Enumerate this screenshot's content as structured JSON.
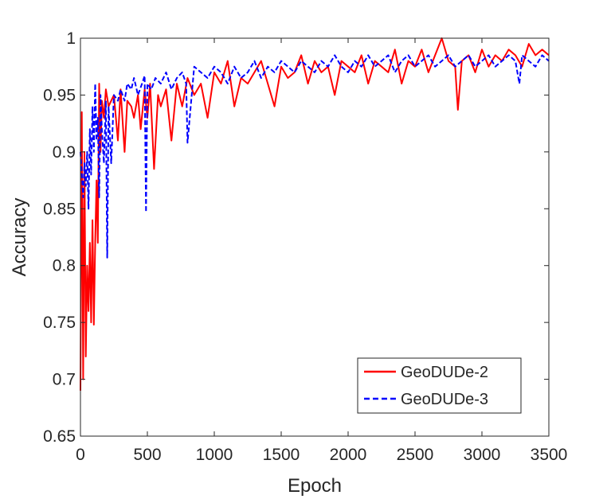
{
  "chart_data": {
    "type": "line",
    "xlabel": "Epoch",
    "ylabel": "Accuracy",
    "xlim": [
      0,
      3500
    ],
    "ylim": [
      0.65,
      1
    ],
    "x_ticks": [
      0,
      500,
      1000,
      1500,
      2000,
      2500,
      3000,
      3500
    ],
    "y_ticks": [
      0.65,
      0.7,
      0.75,
      0.8,
      0.85,
      0.9,
      0.95,
      1
    ],
    "x_tick_labels": [
      "0",
      "500",
      "1000",
      "1500",
      "2000",
      "2500",
      "3000",
      "3500"
    ],
    "y_tick_labels": [
      "0.65",
      "0.7",
      "0.75",
      "0.8",
      "0.85",
      "0.9",
      "0.95",
      "1"
    ],
    "grid": false,
    "legend_position": "bottom-right",
    "series": [
      {
        "name": "GeoDUDe-2",
        "color": "#ff0000",
        "style": "solid",
        "x": [
          0,
          10,
          20,
          30,
          40,
          50,
          60,
          70,
          80,
          90,
          100,
          110,
          120,
          130,
          140,
          150,
          160,
          175,
          190,
          210,
          230,
          250,
          280,
          300,
          330,
          350,
          380,
          400,
          430,
          450,
          480,
          500,
          520,
          550,
          580,
          600,
          640,
          680,
          720,
          760,
          800,
          850,
          900,
          950,
          1000,
          1050,
          1100,
          1150,
          1200,
          1250,
          1300,
          1350,
          1400,
          1450,
          1500,
          1550,
          1600,
          1650,
          1700,
          1750,
          1800,
          1850,
          1900,
          1950,
          2000,
          2050,
          2100,
          2150,
          2200,
          2250,
          2300,
          2350,
          2400,
          2450,
          2500,
          2550,
          2600,
          2650,
          2700,
          2750,
          2800,
          2820,
          2850,
          2900,
          2950,
          3000,
          3050,
          3100,
          3150,
          3200,
          3250,
          3300,
          3350,
          3400,
          3450,
          3500
        ],
        "values": [
          0.69,
          0.935,
          0.7,
          0.9,
          0.72,
          0.8,
          0.76,
          0.82,
          0.75,
          0.84,
          0.748,
          0.82,
          0.875,
          0.82,
          0.96,
          0.9,
          0.945,
          0.93,
          0.955,
          0.94,
          0.945,
          0.95,
          0.91,
          0.955,
          0.9,
          0.945,
          0.94,
          0.93,
          0.95,
          0.92,
          0.955,
          0.93,
          0.96,
          0.885,
          0.95,
          0.94,
          0.955,
          0.91,
          0.96,
          0.94,
          0.965,
          0.95,
          0.96,
          0.93,
          0.97,
          0.96,
          0.98,
          0.94,
          0.965,
          0.96,
          0.97,
          0.98,
          0.96,
          0.94,
          0.975,
          0.965,
          0.97,
          0.985,
          0.96,
          0.98,
          0.97,
          0.975,
          0.95,
          0.98,
          0.975,
          0.97,
          0.985,
          0.96,
          0.98,
          0.975,
          0.97,
          0.99,
          0.96,
          0.98,
          0.975,
          0.99,
          0.97,
          0.985,
          1.0,
          0.98,
          0.975,
          0.937,
          0.98,
          0.985,
          0.97,
          0.99,
          0.975,
          0.985,
          0.98,
          0.99,
          0.985,
          0.975,
          0.995,
          0.985,
          0.99,
          0.985
        ]
      },
      {
        "name": "GeoDUDe-3",
        "color": "#0000ff",
        "style": "dashed",
        "x": [
          0,
          10,
          20,
          30,
          40,
          50,
          60,
          70,
          80,
          90,
          100,
          110,
          120,
          130,
          140,
          150,
          160,
          175,
          190,
          200,
          210,
          230,
          250,
          280,
          300,
          330,
          350,
          380,
          400,
          430,
          460,
          480,
          490,
          500,
          530,
          560,
          600,
          640,
          680,
          720,
          760,
          790,
          800,
          850,
          900,
          950,
          1000,
          1050,
          1100,
          1150,
          1200,
          1250,
          1300,
          1350,
          1400,
          1450,
          1500,
          1550,
          1600,
          1650,
          1700,
          1750,
          1800,
          1850,
          1900,
          1950,
          2000,
          2050,
          2100,
          2150,
          2200,
          2250,
          2300,
          2350,
          2400,
          2450,
          2500,
          2550,
          2600,
          2650,
          2700,
          2750,
          2800,
          2850,
          2900,
          2950,
          3000,
          3050,
          3100,
          3150,
          3200,
          3250,
          3280,
          3300,
          3350,
          3400,
          3450,
          3500
        ],
        "values": [
          0.9,
          0.88,
          0.86,
          0.89,
          0.87,
          0.9,
          0.85,
          0.92,
          0.88,
          0.94,
          0.9,
          0.96,
          0.91,
          0.93,
          0.86,
          0.95,
          0.92,
          0.89,
          0.945,
          0.807,
          0.94,
          0.89,
          0.95,
          0.945,
          0.955,
          0.945,
          0.96,
          0.955,
          0.965,
          0.95,
          0.96,
          0.967,
          0.847,
          0.96,
          0.955,
          0.965,
          0.96,
          0.97,
          0.955,
          0.965,
          0.97,
          0.96,
          0.908,
          0.975,
          0.97,
          0.965,
          0.975,
          0.97,
          0.96,
          0.975,
          0.965,
          0.97,
          0.98,
          0.965,
          0.975,
          0.97,
          0.98,
          0.975,
          0.97,
          0.98,
          0.975,
          0.97,
          0.98,
          0.975,
          0.985,
          0.975,
          0.97,
          0.98,
          0.975,
          0.985,
          0.975,
          0.98,
          0.985,
          0.97,
          0.98,
          0.985,
          0.975,
          0.98,
          0.985,
          0.975,
          0.98,
          0.985,
          0.975,
          0.98,
          0.985,
          0.975,
          0.98,
          0.985,
          0.975,
          0.98,
          0.985,
          0.98,
          0.96,
          0.985,
          0.98,
          0.975,
          0.985,
          0.98
        ]
      }
    ]
  }
}
